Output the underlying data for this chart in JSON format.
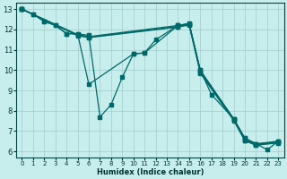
{
  "xlabel": "Humidex (Indice chaleur)",
  "background_color": "#c8eded",
  "grid_color": "#a0cccc",
  "line_color": "#006868",
  "xlim": [
    -0.5,
    23.5
  ],
  "ylim": [
    5.7,
    13.3
  ],
  "xticks": [
    0,
    1,
    2,
    3,
    4,
    5,
    6,
    7,
    8,
    9,
    10,
    11,
    12,
    13,
    14,
    15,
    16,
    17,
    18,
    19,
    20,
    21,
    22,
    23
  ],
  "yticks": [
    6,
    7,
    8,
    9,
    10,
    11,
    12,
    13
  ],
  "series": [
    {
      "x": [
        0,
        1,
        2,
        3,
        4,
        5,
        6,
        7,
        8,
        9,
        10,
        11,
        12,
        14,
        15,
        16,
        19,
        20,
        21,
        22,
        23
      ],
      "y": [
        13.0,
        12.75,
        12.4,
        12.2,
        11.8,
        11.78,
        11.72,
        7.7,
        8.3,
        9.65,
        10.8,
        10.85,
        11.5,
        12.2,
        12.3,
        10.0,
        7.6,
        6.65,
        6.38,
        6.08,
        6.5
      ]
    },
    {
      "x": [
        0,
        1,
        2,
        3,
        4,
        5,
        6,
        10,
        11,
        14,
        15,
        16,
        17,
        19,
        20,
        21,
        23
      ],
      "y": [
        13.0,
        12.75,
        12.4,
        12.2,
        11.8,
        11.78,
        9.3,
        10.8,
        10.85,
        12.2,
        12.28,
        10.0,
        8.8,
        7.6,
        6.65,
        6.38,
        6.5
      ]
    },
    {
      "x": [
        0,
        5,
        6,
        14,
        15,
        16,
        19,
        20,
        21,
        23
      ],
      "y": [
        13.0,
        11.75,
        11.65,
        12.2,
        12.28,
        9.95,
        7.6,
        6.6,
        6.35,
        6.48
      ]
    },
    {
      "x": [
        0,
        5,
        6,
        14,
        15,
        16,
        19,
        20,
        21,
        23
      ],
      "y": [
        13.0,
        11.72,
        11.62,
        12.15,
        12.25,
        9.9,
        7.55,
        6.55,
        6.32,
        6.45
      ]
    },
    {
      "x": [
        0,
        5,
        6,
        14,
        15,
        16,
        19,
        20,
        21,
        23
      ],
      "y": [
        13.0,
        11.7,
        11.6,
        12.12,
        12.22,
        9.85,
        7.52,
        6.52,
        6.3,
        6.42
      ]
    }
  ]
}
